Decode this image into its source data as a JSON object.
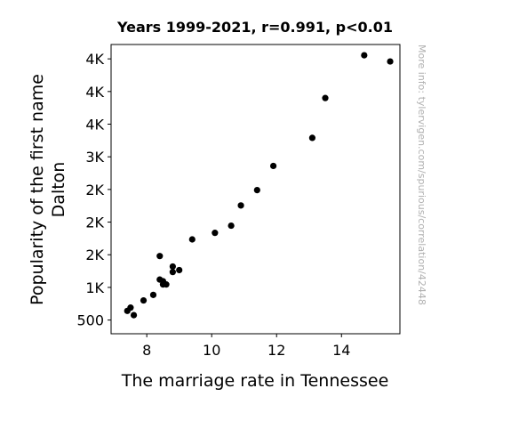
{
  "chart_data": {
    "type": "scatter",
    "title": "Years 1999-2021, r=0.991, p<0.01",
    "xlabel": "The marriage rate in Tennessee",
    "ylabel_lines": [
      "Popularity of the first name",
      "Dalton"
    ],
    "watermark": "More info: tylervigen.com/spurious/correlation/42448",
    "xlim": [
      6.9,
      15.8
    ],
    "ylim": [
      290,
      4720
    ],
    "x_ticks": [
      {
        "value": 8,
        "label": "8"
      },
      {
        "value": 10,
        "label": "10"
      },
      {
        "value": 12,
        "label": "12"
      },
      {
        "value": 14,
        "label": "14"
      }
    ],
    "y_ticks": [
      {
        "value": 500,
        "label": "500"
      },
      {
        "value": 1000,
        "label": "1K"
      },
      {
        "value": 1500,
        "label": "2K"
      },
      {
        "value": 2000,
        "label": "2K"
      },
      {
        "value": 2500,
        "label": "2K"
      },
      {
        "value": 3000,
        "label": "3K"
      },
      {
        "value": 3500,
        "label": "4K"
      },
      {
        "value": 4000,
        "label": "4K"
      },
      {
        "value": 4500,
        "label": "4K"
      }
    ],
    "color": "#000000",
    "points": [
      {
        "x": 14.7,
        "y": 4555
      },
      {
        "x": 15.5,
        "y": 4460
      },
      {
        "x": 13.5,
        "y": 3900
      },
      {
        "x": 13.1,
        "y": 3290
      },
      {
        "x": 11.9,
        "y": 2860
      },
      {
        "x": 11.4,
        "y": 2490
      },
      {
        "x": 10.9,
        "y": 2255
      },
      {
        "x": 10.6,
        "y": 1945
      },
      {
        "x": 10.1,
        "y": 1835
      },
      {
        "x": 9.4,
        "y": 1735
      },
      {
        "x": 8.4,
        "y": 1480
      },
      {
        "x": 8.8,
        "y": 1320
      },
      {
        "x": 9.0,
        "y": 1265
      },
      {
        "x": 8.8,
        "y": 1235
      },
      {
        "x": 8.4,
        "y": 1120
      },
      {
        "x": 8.5,
        "y": 1095
      },
      {
        "x": 8.5,
        "y": 1045
      },
      {
        "x": 8.6,
        "y": 1045
      },
      {
        "x": 8.2,
        "y": 885
      },
      {
        "x": 7.9,
        "y": 800
      },
      {
        "x": 7.5,
        "y": 690
      },
      {
        "x": 7.4,
        "y": 640
      },
      {
        "x": 7.6,
        "y": 575
      }
    ]
  }
}
